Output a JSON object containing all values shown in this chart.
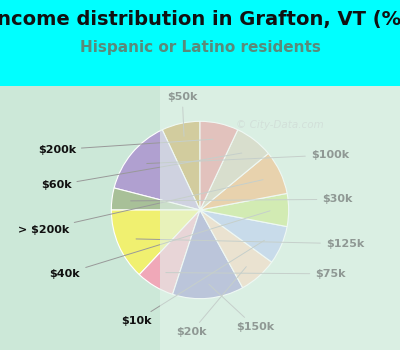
{
  "title": "Income distribution in Grafton, VT (%)",
  "subtitle": "Hispanic or Latino residents",
  "labels": [
    "$50k",
    "$100k",
    "$30k",
    "$125k",
    "$75k",
    "$150k",
    "$20k",
    "$10k",
    "$40k",
    "> $200k",
    "$60k",
    "$200k"
  ],
  "values": [
    7,
    14,
    4,
    13,
    7,
    13,
    7,
    7,
    6,
    8,
    7,
    7
  ],
  "colors": [
    "#b8922a",
    "#b0a0d0",
    "#a8c098",
    "#f0f070",
    "#f0a8b8",
    "#8080c0",
    "#f5c8a8",
    "#a0b8e8",
    "#b8e060",
    "#f0a050",
    "#c8bea0",
    "#e07878"
  ],
  "background_top": "#00ffff",
  "background_chart_left": "#d0ecd8",
  "background_chart_right": "#e8f4ee",
  "watermark": "© City-Data.com",
  "title_fontsize": 14,
  "subtitle_fontsize": 11,
  "label_fontsize": 8
}
